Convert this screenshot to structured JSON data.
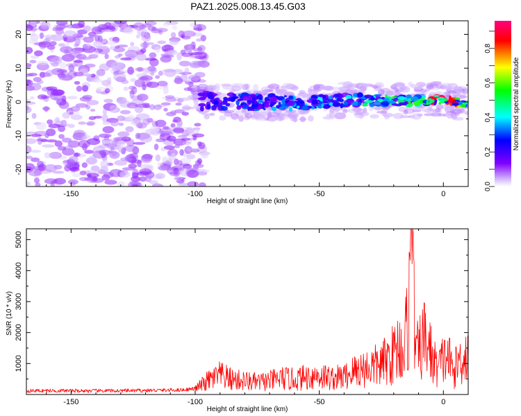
{
  "figure": {
    "title": "PAZ1.2025.008.13.45.G03"
  },
  "chart_data": [
    {
      "type": "heatmap",
      "xlabel": "Height of straight line (km)",
      "ylabel": "Frequency (Hz)",
      "xlim": [
        -168,
        10
      ],
      "ylim": [
        -25,
        24
      ],
      "x_ticks": [
        -150,
        -100,
        -50,
        0
      ],
      "y_ticks": [
        -20,
        -10,
        0,
        10,
        20
      ],
      "colorbar": {
        "label": "Normalized spectral amplitude",
        "range": [
          0,
          0.96
        ],
        "ticks": [
          "0.0",
          "0.2",
          "0.4",
          "0.6",
          "0.8"
        ],
        "tick_values": [
          0,
          0.2,
          0.4,
          0.6,
          0.8
        ],
        "colors": [
          "#ffffff",
          "#8000ff",
          "#0000ff",
          "#00ffff",
          "#00ff00",
          "#ffff00",
          "#ff0000",
          "#ff0080"
        ]
      },
      "ridge_center_hz": [
        {
          "x": -100,
          "y": 0.5
        },
        {
          "x": -80,
          "y": 0
        },
        {
          "x": -60,
          "y": -0.3
        },
        {
          "x": -40,
          "y": 0.5
        },
        {
          "x": -20,
          "y": 0.5
        },
        {
          "x": -10,
          "y": 0.3
        },
        {
          "x": 0,
          "y": 0.8
        },
        {
          "x": 10,
          "y": -1
        }
      ],
      "grid": false
    },
    {
      "type": "line",
      "xlabel": "Height of straight line (km)",
      "ylabel": "SNR (10 * v/v)",
      "xlim": [
        -168,
        10
      ],
      "ylim": [
        0,
        5350
      ],
      "x_ticks": [
        -150,
        -100,
        -50,
        0
      ],
      "y_ticks": [
        1000,
        2000,
        3000,
        4000,
        5000
      ],
      "series_color": "#ff0000",
      "x": [
        -168,
        -160,
        -150,
        -140,
        -130,
        -120,
        -110,
        -105,
        -100,
        -95,
        -90,
        -85,
        -80,
        -75,
        -70,
        -65,
        -60,
        -55,
        -50,
        -45,
        -40,
        -35,
        -30,
        -25,
        -20,
        -18,
        -16,
        -14,
        -13,
        -12,
        -11,
        -10,
        -8,
        -6,
        -4,
        -2,
        0,
        2,
        4,
        6,
        8,
        10
      ],
      "y": [
        130,
        135,
        130,
        130,
        130,
        140,
        150,
        160,
        200,
        500,
        700,
        550,
        500,
        450,
        500,
        600,
        550,
        650,
        700,
        600,
        650,
        900,
        1000,
        1100,
        1500,
        1800,
        1600,
        3000,
        5350,
        3500,
        1600,
        1500,
        2100,
        1800,
        1200,
        1000,
        1300,
        1400,
        800,
        1200,
        1400,
        1500
      ],
      "peak": {
        "x": -13,
        "y": 5350
      },
      "grid": false
    }
  ]
}
